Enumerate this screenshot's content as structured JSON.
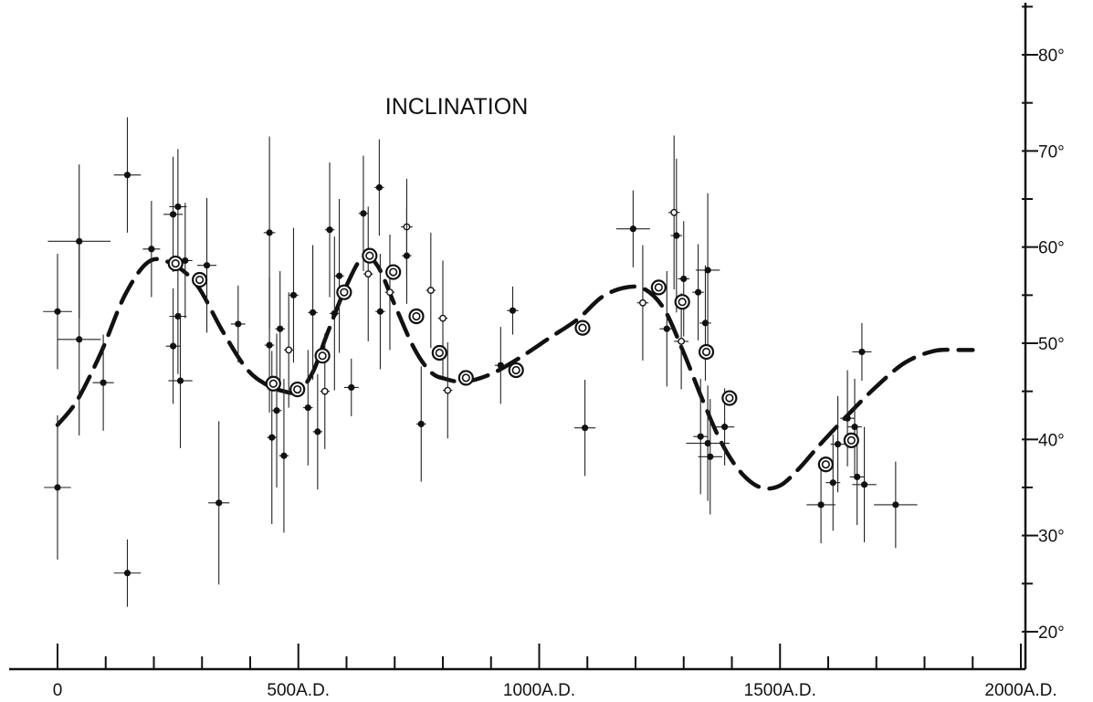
{
  "chart_data": {
    "type": "scatter",
    "title": "INCLINATION",
    "xlim": [
      0,
      2000
    ],
    "ylim": [
      16,
      85
    ],
    "x_ticks": [
      {
        "value": 0,
        "label": "0"
      },
      {
        "value": 500,
        "label": "500A.D."
      },
      {
        "value": 1000,
        "label": "1000A.D."
      },
      {
        "value": 1500,
        "label": "1500A.D."
      },
      {
        "value": 2000,
        "label": "2000A.D."
      }
    ],
    "x_minor_ticks": [
      100,
      200,
      300,
      400,
      600,
      700,
      800,
      900,
      1100,
      1200,
      1300,
      1400,
      1600,
      1700,
      1800,
      1900
    ],
    "y_ticks": [
      {
        "value": 20,
        "label": "20°"
      },
      {
        "value": 30,
        "label": "30°"
      },
      {
        "value": 40,
        "label": "40°"
      },
      {
        "value": 50,
        "label": "50°"
      },
      {
        "value": 60,
        "label": "60°"
      },
      {
        "value": 70,
        "label": "70°"
      },
      {
        "value": 80,
        "label": "80°"
      }
    ],
    "y_minor_ticks": [
      25,
      35,
      45,
      55,
      65,
      75,
      85
    ],
    "grid": false,
    "trend_curve": [
      [
        0,
        41.5
      ],
      [
        40,
        44
      ],
      [
        90,
        49
      ],
      [
        140,
        55
      ],
      [
        190,
        58.5
      ],
      [
        240,
        58.2
      ],
      [
        290,
        56
      ],
      [
        340,
        51.5
      ],
      [
        390,
        47.5
      ],
      [
        430,
        45.8
      ],
      [
        470,
        45
      ],
      [
        500,
        45
      ],
      [
        530,
        47
      ],
      [
        560,
        51
      ],
      [
        600,
        56
      ],
      [
        635,
        59
      ],
      [
        665,
        58
      ],
      [
        700,
        54
      ],
      [
        740,
        49.5
      ],
      [
        775,
        47
      ],
      [
        805,
        46.3
      ],
      [
        845,
        46
      ],
      [
        900,
        46.8
      ],
      [
        960,
        48.5
      ],
      [
        1020,
        50.5
      ],
      [
        1080,
        52.5
      ],
      [
        1130,
        54.8
      ],
      [
        1180,
        55.8
      ],
      [
        1220,
        55.6
      ],
      [
        1260,
        53.5
      ],
      [
        1300,
        49
      ],
      [
        1340,
        44
      ],
      [
        1380,
        39.5
      ],
      [
        1420,
        36.5
      ],
      [
        1460,
        35
      ],
      [
        1500,
        35.2
      ],
      [
        1540,
        37
      ],
      [
        1580,
        39.3
      ],
      [
        1640,
        42.5
      ],
      [
        1700,
        45.5
      ],
      [
        1760,
        48
      ],
      [
        1820,
        49.2
      ],
      [
        1870,
        49.3
      ],
      [
        1900,
        49.3
      ]
    ],
    "mean_points": [
      {
        "x": 245,
        "y": 58.3
      },
      {
        "x": 295,
        "y": 56.6
      },
      {
        "x": 448,
        "y": 45.8
      },
      {
        "x": 498,
        "y": 45.2
      },
      {
        "x": 550,
        "y": 48.7
      },
      {
        "x": 595,
        "y": 55.3
      },
      {
        "x": 648,
        "y": 59.1
      },
      {
        "x": 697,
        "y": 57.4
      },
      {
        "x": 745,
        "y": 52.8
      },
      {
        "x": 793,
        "y": 49.0
      },
      {
        "x": 848,
        "y": 46.4
      },
      {
        "x": 952,
        "y": 47.2
      },
      {
        "x": 1090,
        "y": 51.6
      },
      {
        "x": 1248,
        "y": 55.8
      },
      {
        "x": 1297,
        "y": 54.3
      },
      {
        "x": 1347,
        "y": 49.1
      },
      {
        "x": 1395,
        "y": 44.3
      },
      {
        "x": 1595,
        "y": 37.4
      },
      {
        "x": 1648,
        "y": 39.9
      }
    ],
    "observations": [
      {
        "x": 0,
        "y": 53.3,
        "dx": 30,
        "dy": 6,
        "open": false
      },
      {
        "x": 0,
        "y": 35.0,
        "dx": 28,
        "dy": 7.5,
        "open": false
      },
      {
        "x": 45,
        "y": 60.6,
        "dx": 65,
        "dy": 8,
        "open": false
      },
      {
        "x": 45,
        "y": 50.4,
        "dx": 45,
        "dy": 10,
        "open": false
      },
      {
        "x": 95,
        "y": 45.9,
        "dx": 22,
        "dy": 5,
        "open": false
      },
      {
        "x": 145,
        "y": 67.5,
        "dx": 28,
        "dy": 6,
        "open": false
      },
      {
        "x": 145,
        "y": 26.1,
        "dx": 28,
        "dy": 3.5,
        "open": false
      },
      {
        "x": 195,
        "y": 59.8,
        "dx": 18,
        "dy": 5,
        "open": false
      },
      {
        "x": 240,
        "y": 63.4,
        "dx": 20,
        "dy": 6,
        "open": false
      },
      {
        "x": 240,
        "y": 49.7,
        "dx": 15,
        "dy": 6,
        "open": false
      },
      {
        "x": 250,
        "y": 64.2,
        "dx": 18,
        "dy": 6,
        "open": false
      },
      {
        "x": 250,
        "y": 52.8,
        "dx": 18,
        "dy": 6,
        "open": false
      },
      {
        "x": 255,
        "y": 46.1,
        "dx": 25,
        "dy": 7,
        "open": false
      },
      {
        "x": 265,
        "y": 58.6,
        "dx": 15,
        "dy": 6,
        "open": false
      },
      {
        "x": 310,
        "y": 58.1,
        "dx": 20,
        "dy": 7,
        "open": false
      },
      {
        "x": 335,
        "y": 33.4,
        "dx": 22,
        "dy": 8.5,
        "open": false
      },
      {
        "x": 375,
        "y": 52.0,
        "dx": 15,
        "dy": 4,
        "open": false
      },
      {
        "x": 440,
        "y": 61.5,
        "dx": 12,
        "dy": 10,
        "open": false
      },
      {
        "x": 440,
        "y": 49.8,
        "dx": 10,
        "dy": 7,
        "open": false
      },
      {
        "x": 445,
        "y": 40.2,
        "dx": 10,
        "dy": 9,
        "open": false
      },
      {
        "x": 455,
        "y": 43.0,
        "dx": 10,
        "dy": 8,
        "open": false
      },
      {
        "x": 462,
        "y": 51.5,
        "dx": 10,
        "dy": 6,
        "open": false
      },
      {
        "x": 470,
        "y": 38.3,
        "dx": 10,
        "dy": 8,
        "open": false
      },
      {
        "x": 480,
        "y": 49.3,
        "dx": 10,
        "dy": 6,
        "open": true
      },
      {
        "x": 490,
        "y": 55.0,
        "dx": 10,
        "dy": 7,
        "open": false
      },
      {
        "x": 520,
        "y": 43.3,
        "dx": 10,
        "dy": 6,
        "open": false
      },
      {
        "x": 530,
        "y": 53.2,
        "dx": 10,
        "dy": 7,
        "open": false
      },
      {
        "x": 540,
        "y": 40.8,
        "dx": 10,
        "dy": 6,
        "open": false
      },
      {
        "x": 555,
        "y": 45.0,
        "dx": 10,
        "dy": 6,
        "open": true
      },
      {
        "x": 565,
        "y": 61.8,
        "dx": 10,
        "dy": 7,
        "open": false
      },
      {
        "x": 575,
        "y": 53.1,
        "dx": 10,
        "dy": 8,
        "open": false
      },
      {
        "x": 585,
        "y": 57.0,
        "dx": 10,
        "dy": 8,
        "open": false
      },
      {
        "x": 610,
        "y": 45.4,
        "dx": 15,
        "dy": 3,
        "open": false
      },
      {
        "x": 635,
        "y": 63.5,
        "dx": 10,
        "dy": 6,
        "open": false
      },
      {
        "x": 645,
        "y": 57.2,
        "dx": 10,
        "dy": 7,
        "open": true
      },
      {
        "x": 668,
        "y": 66.2,
        "dx": 10,
        "dy": 5,
        "open": false
      },
      {
        "x": 670,
        "y": 53.3,
        "dx": 10,
        "dy": 6,
        "open": false
      },
      {
        "x": 690,
        "y": 55.3,
        "dx": 10,
        "dy": 6,
        "open": true
      },
      {
        "x": 725,
        "y": 62.1,
        "dx": 12,
        "dy": 5,
        "open": true
      },
      {
        "x": 725,
        "y": 59.1,
        "dx": 10,
        "dy": 5,
        "open": false
      },
      {
        "x": 755,
        "y": 41.6,
        "dx": 10,
        "dy": 6,
        "open": false
      },
      {
        "x": 775,
        "y": 55.5,
        "dx": 10,
        "dy": 6,
        "open": true
      },
      {
        "x": 800,
        "y": 52.6,
        "dx": 10,
        "dy": 6,
        "open": true
      },
      {
        "x": 810,
        "y": 45.1,
        "dx": 10,
        "dy": 5,
        "open": true
      },
      {
        "x": 920,
        "y": 47.7,
        "dx": 12,
        "dy": 4,
        "open": false
      },
      {
        "x": 945,
        "y": 53.4,
        "dx": 12,
        "dy": 2.5,
        "open": false
      },
      {
        "x": 1095,
        "y": 41.2,
        "dx": 22,
        "dy": 5,
        "open": false
      },
      {
        "x": 1195,
        "y": 61.9,
        "dx": 35,
        "dy": 4,
        "open": false
      },
      {
        "x": 1215,
        "y": 54.2,
        "dx": 12,
        "dy": 6,
        "open": true
      },
      {
        "x": 1265,
        "y": 51.5,
        "dx": 15,
        "dy": 6,
        "open": false
      },
      {
        "x": 1280,
        "y": 63.6,
        "dx": 12,
        "dy": 8,
        "open": true
      },
      {
        "x": 1285,
        "y": 61.2,
        "dx": 12,
        "dy": 8,
        "open": false
      },
      {
        "x": 1295,
        "y": 50.2,
        "dx": 15,
        "dy": 5,
        "open": true
      },
      {
        "x": 1300,
        "y": 56.7,
        "dx": 12,
        "dy": 6,
        "open": false
      },
      {
        "x": 1330,
        "y": 55.3,
        "dx": 12,
        "dy": 5,
        "open": false
      },
      {
        "x": 1335,
        "y": 40.3,
        "dx": 15,
        "dy": 6,
        "open": false
      },
      {
        "x": 1345,
        "y": 52.1,
        "dx": 12,
        "dy": 6,
        "open": false
      },
      {
        "x": 1350,
        "y": 57.6,
        "dx": 25,
        "dy": 8,
        "open": false
      },
      {
        "x": 1350,
        "y": 39.6,
        "dx": 45,
        "dy": 6,
        "open": false
      },
      {
        "x": 1355,
        "y": 38.2,
        "dx": 25,
        "dy": 6,
        "open": false
      },
      {
        "x": 1385,
        "y": 41.3,
        "dx": 20,
        "dy": 4,
        "open": false
      },
      {
        "x": 1585,
        "y": 33.2,
        "dx": 30,
        "dy": 4,
        "open": false
      },
      {
        "x": 1610,
        "y": 35.5,
        "dx": 15,
        "dy": 5,
        "open": false
      },
      {
        "x": 1620,
        "y": 39.5,
        "dx": 15,
        "dy": 5,
        "open": false
      },
      {
        "x": 1640,
        "y": 42.2,
        "dx": 15,
        "dy": 5,
        "open": false
      },
      {
        "x": 1655,
        "y": 41.3,
        "dx": 15,
        "dy": 5,
        "open": false
      },
      {
        "x": 1660,
        "y": 36.1,
        "dx": 15,
        "dy": 5,
        "open": false
      },
      {
        "x": 1670,
        "y": 49.1,
        "dx": 20,
        "dy": 3,
        "open": false
      },
      {
        "x": 1675,
        "y": 35.3,
        "dx": 25,
        "dy": 6,
        "open": false
      },
      {
        "x": 1740,
        "y": 33.2,
        "dx": 45,
        "dy": 4.5,
        "open": false
      }
    ]
  }
}
